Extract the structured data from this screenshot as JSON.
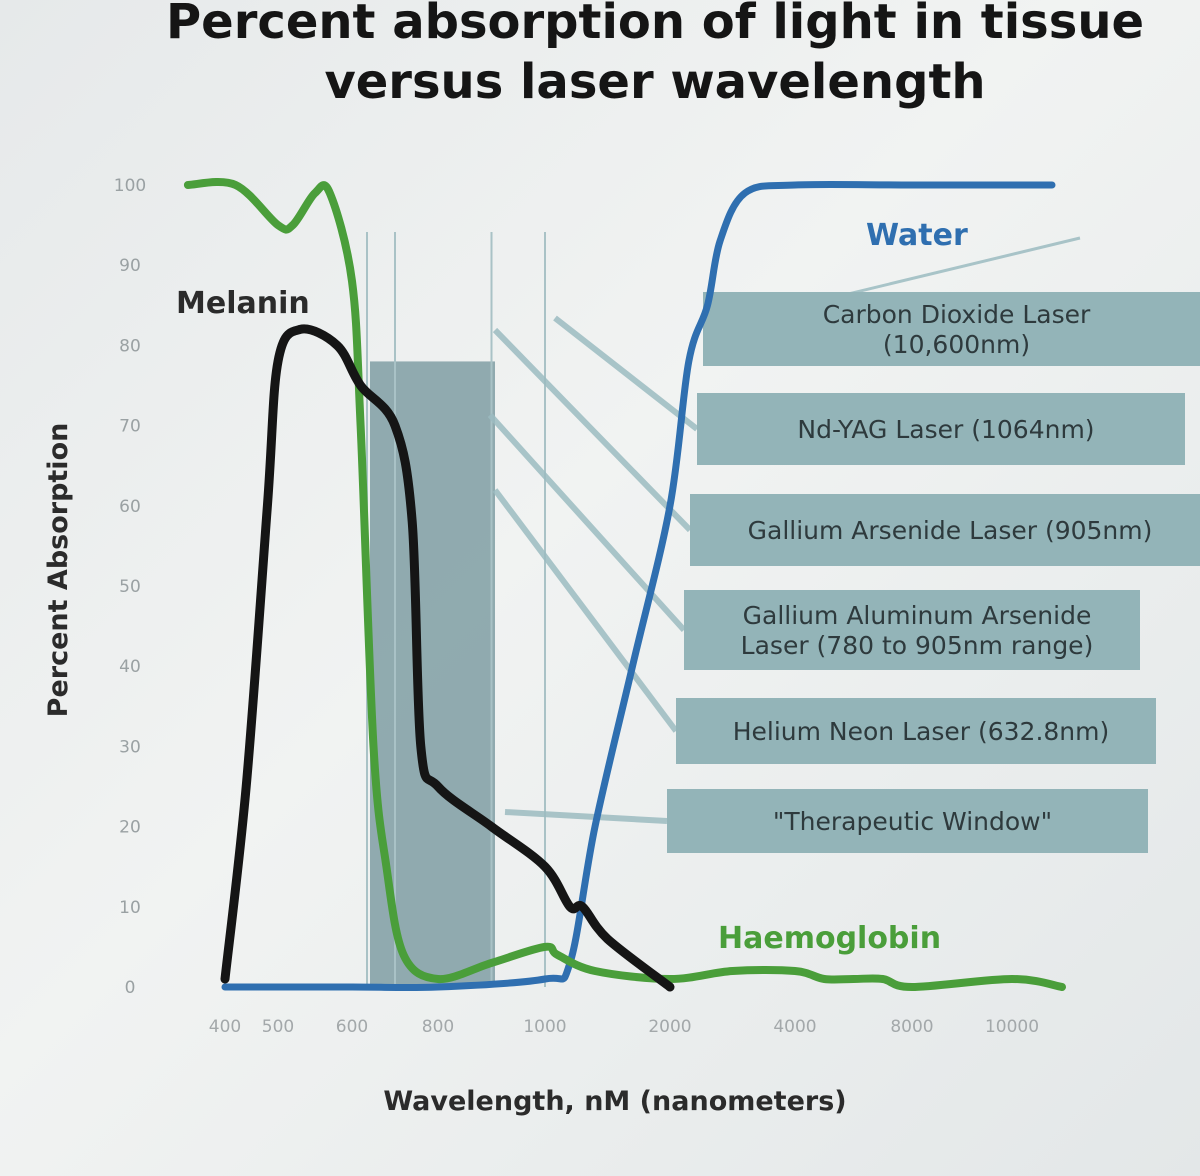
{
  "chart_data": {
    "type": "line",
    "title": [
      "Percent absorption of light in tissue",
      "versus laser wavelength"
    ],
    "xlabel": "Wavelength, nM (nanometers)",
    "ylabel": "Percent Absorption",
    "x_ticks": [
      400,
      500,
      600,
      800,
      1000,
      2000,
      4000,
      8000,
      10000
    ],
    "x_tick_labels": [
      "400",
      "500",
      "600",
      "800",
      "1000",
      "2000",
      "4000",
      "8000",
      "10000"
    ],
    "y_ticks": [
      0,
      10,
      20,
      30,
      40,
      50,
      60,
      70,
      80,
      90,
      100
    ],
    "y_tick_labels": [
      "0",
      "10",
      "20",
      "30",
      "40",
      "50",
      "60",
      "70",
      "80",
      "90",
      "100"
    ],
    "ylim": [
      0,
      100
    ],
    "grid": false,
    "series": [
      {
        "name": "Melanin",
        "color": "#151515",
        "points": [
          [
            400,
            1
          ],
          [
            440,
            25
          ],
          [
            480,
            60
          ],
          [
            500,
            78
          ],
          [
            530,
            82
          ],
          [
            580,
            80
          ],
          [
            620,
            75
          ],
          [
            700,
            70
          ],
          [
            740,
            58
          ],
          [
            760,
            30
          ],
          [
            800,
            25
          ],
          [
            900,
            20
          ],
          [
            1000,
            15
          ],
          [
            1200,
            10
          ],
          [
            1300,
            10
          ],
          [
            1500,
            6
          ],
          [
            2000,
            0
          ]
        ]
      },
      {
        "name": "Water",
        "color": "#2f6fb0",
        "points": [
          [
            400,
            0
          ],
          [
            600,
            0
          ],
          [
            800,
            0
          ],
          [
            1000,
            1
          ],
          [
            1200,
            3
          ],
          [
            1400,
            20
          ],
          [
            1700,
            40
          ],
          [
            2000,
            60
          ],
          [
            2300,
            78
          ],
          [
            2600,
            85
          ],
          [
            2800,
            93
          ],
          [
            3200,
            99
          ],
          [
            4000,
            100
          ],
          [
            8000,
            100
          ],
          [
            10800,
            100
          ]
        ]
      },
      {
        "name": "Haemoglobin",
        "color": "#4a9e3a",
        "points": [
          [
            330,
            100
          ],
          [
            420,
            100
          ],
          [
            500,
            95
          ],
          [
            520,
            95
          ],
          [
            550,
            99
          ],
          [
            570,
            99
          ],
          [
            600,
            88
          ],
          [
            620,
            70
          ],
          [
            650,
            30
          ],
          [
            680,
            15
          ],
          [
            720,
            4
          ],
          [
            800,
            1
          ],
          [
            900,
            3
          ],
          [
            1000,
            5
          ],
          [
            1100,
            4
          ],
          [
            1400,
            2
          ],
          [
            2000,
            1
          ],
          [
            3000,
            2
          ],
          [
            4000,
            2
          ],
          [
            5000,
            1
          ],
          [
            6000,
            1
          ],
          [
            7000,
            1
          ],
          [
            8000,
            0
          ],
          [
            10000,
            1
          ],
          [
            11000,
            0
          ]
        ]
      }
    ],
    "annotations": [
      {
        "text": "Melanin",
        "color": "#2b2b2b"
      },
      {
        "text": "Water",
        "color": "#2f6fb0"
      },
      {
        "text": "Haemoglobin",
        "color": "#4a9e3a"
      }
    ],
    "laser_boxes": [
      {
        "lines": [
          "Carbon Dioxide Laser",
          "(10,600nm)"
        ],
        "wavelength_nm": 10600
      },
      {
        "lines": [
          "Nd-YAG Laser (1064nm)"
        ],
        "wavelength_nm": 1064
      },
      {
        "lines": [
          "Gallium Arsenide Laser (905nm)"
        ],
        "wavelength_nm": 905
      },
      {
        "lines": [
          "Gallium Aluminum Arsenide",
          "Laser  (780 to 905nm range)"
        ],
        "wavelength_nm": 780
      },
      {
        "lines": [
          "Helium Neon Laser (632.8nm)"
        ],
        "wavelength_nm": 632.8
      },
      {
        "lines": [
          "\"Therapeutic Window\""
        ],
        "wavelength_nm": 850
      }
    ],
    "therapeutic_window": {
      "from_nm": 600,
      "to_nm": 1000,
      "height_percent": 78
    },
    "colors": {
      "box_fill": "#93b4b8",
      "window_fill": "#7f9ea3",
      "leader": "#9cbcc1"
    }
  }
}
